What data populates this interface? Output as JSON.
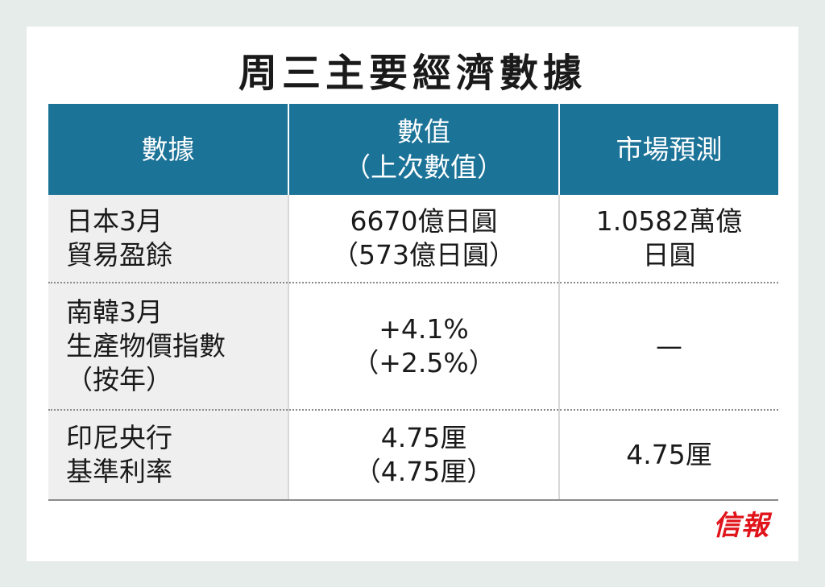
{
  "title": "周三主要經濟數據",
  "table": {
    "headers": {
      "col1": "數據",
      "col2_line1": "數值",
      "col2_line2": "（上次數值）",
      "col3": "市場預測"
    },
    "rows": [
      {
        "label_line1": "日本3月",
        "label_line2": "貿易盈餘",
        "value": "6670億日圓",
        "previous": "（573億日圓）",
        "forecast_line1": "1.0582萬億",
        "forecast_line2": "日圓"
      },
      {
        "label_line1": "南韓3月",
        "label_line2": "生產物價指數",
        "label_line3": "（按年）",
        "value": "+4.1%",
        "previous": "（+2.5%）",
        "forecast": "—"
      },
      {
        "label_line1": "印尼央行",
        "label_line2": "基準利率",
        "value": "4.75厘",
        "previous": "（4.75厘）",
        "forecast": "4.75厘"
      }
    ]
  },
  "logo": "信報",
  "colors": {
    "header_bg": "#1c7398",
    "logo": "#e0141b"
  }
}
